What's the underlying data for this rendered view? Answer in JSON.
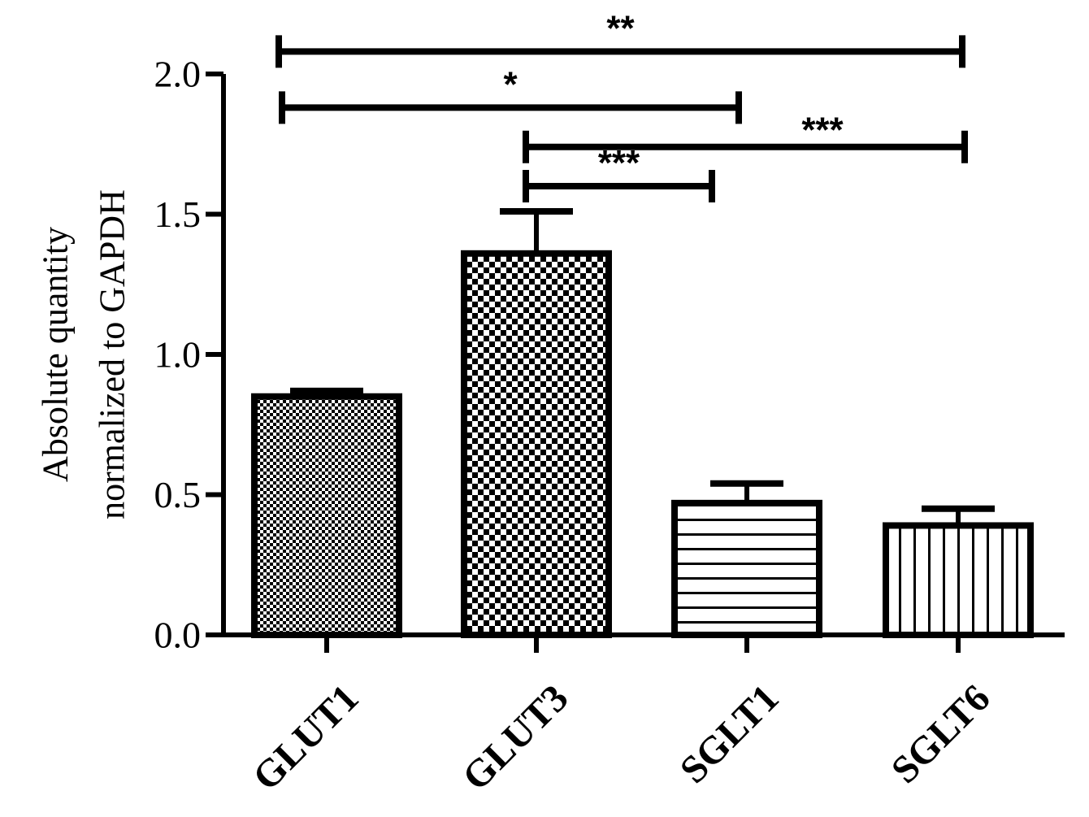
{
  "chart_data": {
    "type": "bar",
    "title": "",
    "xlabel": "",
    "ylabel": [
      "Absolute quantity",
      "normalized to GAPDH"
    ],
    "categories": [
      "GLUT1",
      "GLUT3",
      "SGLT1",
      "SGLT6"
    ],
    "values": [
      0.85,
      1.36,
      0.47,
      0.39
    ],
    "errors": [
      0.02,
      0.15,
      0.07,
      0.06
    ],
    "patterns": [
      "fine-checker",
      "coarse-checker",
      "horizontal-lines",
      "vertical-lines"
    ],
    "ylim": [
      0,
      2.0
    ],
    "yticks": [
      "0.0",
      "0.5",
      "1.0",
      "1.5",
      "2.0"
    ],
    "grid": false,
    "legend": "none",
    "significance": [
      {
        "from": "GLUT1",
        "to": "SGLT6",
        "label": "**",
        "y": 2.08
      },
      {
        "from": "GLUT1",
        "to": "SGLT1",
        "label": "*",
        "y": 1.88
      },
      {
        "from": "GLUT3",
        "to": "SGLT6",
        "label": "***",
        "y": 1.74
      },
      {
        "from": "GLUT3",
        "to": "SGLT1",
        "label": "***",
        "y": 1.6
      }
    ]
  },
  "colors": {
    "ink": "#000000",
    "background": "#ffffff"
  }
}
